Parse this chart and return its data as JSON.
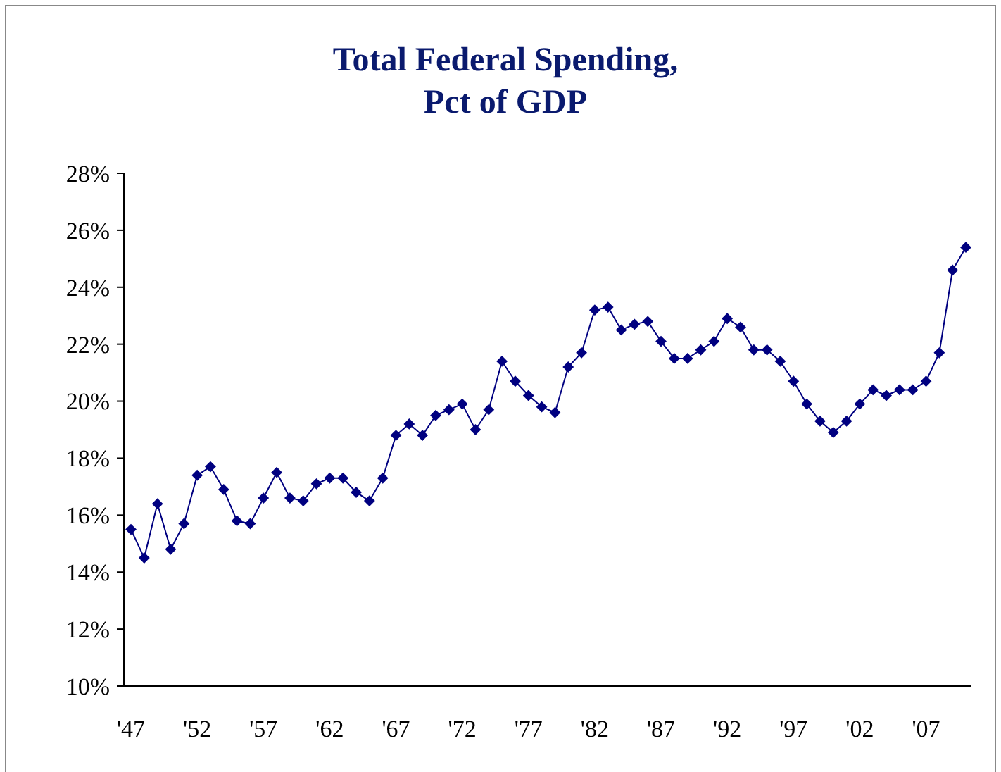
{
  "chart_data": {
    "type": "line",
    "title": "Total Federal Spending,\nPct of GDP",
    "categories": [
      "'47",
      null,
      null,
      null,
      null,
      "'52",
      null,
      null,
      null,
      null,
      "'57",
      null,
      null,
      null,
      null,
      "'62",
      null,
      null,
      null,
      null,
      "'67",
      null,
      null,
      null,
      null,
      "'72",
      null,
      null,
      null,
      null,
      "'77",
      null,
      null,
      null,
      null,
      "'82",
      null,
      null,
      null,
      null,
      "'87",
      null,
      null,
      null,
      null,
      "'92",
      null,
      null,
      null,
      null,
      "'97",
      null,
      null,
      null,
      null,
      "'02",
      null,
      null,
      null,
      null,
      "'07",
      null,
      null,
      null
    ],
    "series": [
      {
        "color": "#000080",
        "values": [
          15.5,
          14.5,
          16.4,
          14.8,
          15.7,
          17.4,
          17.7,
          16.9,
          15.8,
          15.7,
          16.6,
          17.5,
          16.6,
          16.5,
          17.1,
          17.3,
          17.3,
          16.8,
          16.5,
          17.3,
          18.8,
          19.2,
          18.8,
          19.5,
          19.7,
          19.9,
          19.0,
          19.7,
          21.4,
          20.7,
          20.2,
          19.8,
          19.6,
          21.2,
          21.7,
          23.2,
          23.3,
          22.5,
          22.7,
          22.8,
          22.1,
          21.5,
          21.5,
          21.8,
          22.1,
          22.9,
          22.6,
          21.8,
          21.8,
          21.4,
          20.7,
          19.9,
          19.3,
          18.9,
          19.3,
          19.9,
          20.4,
          20.2,
          20.4,
          20.4,
          20.7,
          21.7,
          24.6,
          25.4
        ]
      }
    ],
    "ylim": [
      10,
      28
    ],
    "yticks": [
      {
        "value": 10,
        "label": "10%"
      },
      {
        "value": 12,
        "label": "12%"
      },
      {
        "value": 14,
        "label": "14%"
      },
      {
        "value": 16,
        "label": "16%"
      },
      {
        "value": 18,
        "label": "18%"
      },
      {
        "value": 20,
        "label": "20%"
      },
      {
        "value": 22,
        "label": "22%"
      },
      {
        "value": 24,
        "label": "24%"
      },
      {
        "value": 26,
        "label": "26%"
      },
      {
        "value": 28,
        "label": "28%"
      }
    ],
    "grid": false,
    "marker": "diamond",
    "line_style": "solid"
  }
}
